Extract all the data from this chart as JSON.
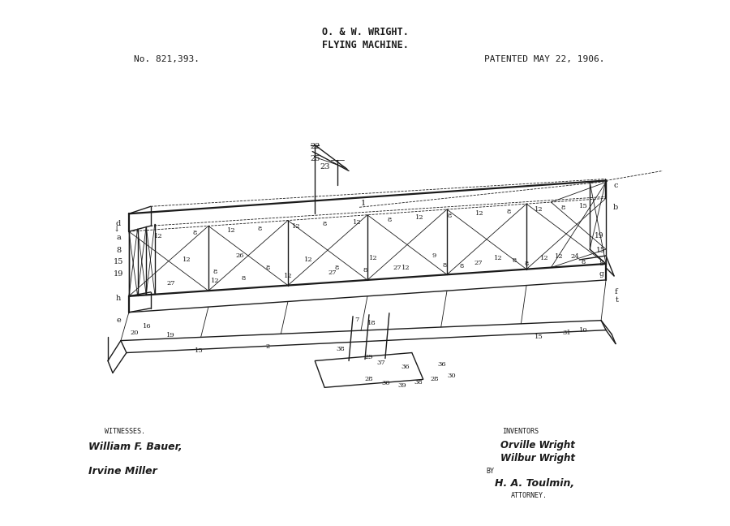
{
  "background_color": "#ffffff",
  "line_color": "#1a1a1a",
  "title_line1": "O. & W. WRIGHT.",
  "title_line2": "FLYING MACHINE.",
  "patent_no": "No. 821,393.",
  "patent_date": "PATENTED MAY 22, 1906.",
  "witnesses_label": "WITNESSES.",
  "witness1": "William F. Bauer,",
  "witness2": "Irvine Miller",
  "inventors_label": "INVENTORS",
  "inventor1": "Orville Wright",
  "inventor2": "Wilbur Wright",
  "by_label": "BY",
  "attorney_sig": "H. A. Toulmin,",
  "attorney_label": "ATTORNEY.",
  "fig_width": 9.0,
  "fig_height": 6.48,
  "dpi": 100
}
